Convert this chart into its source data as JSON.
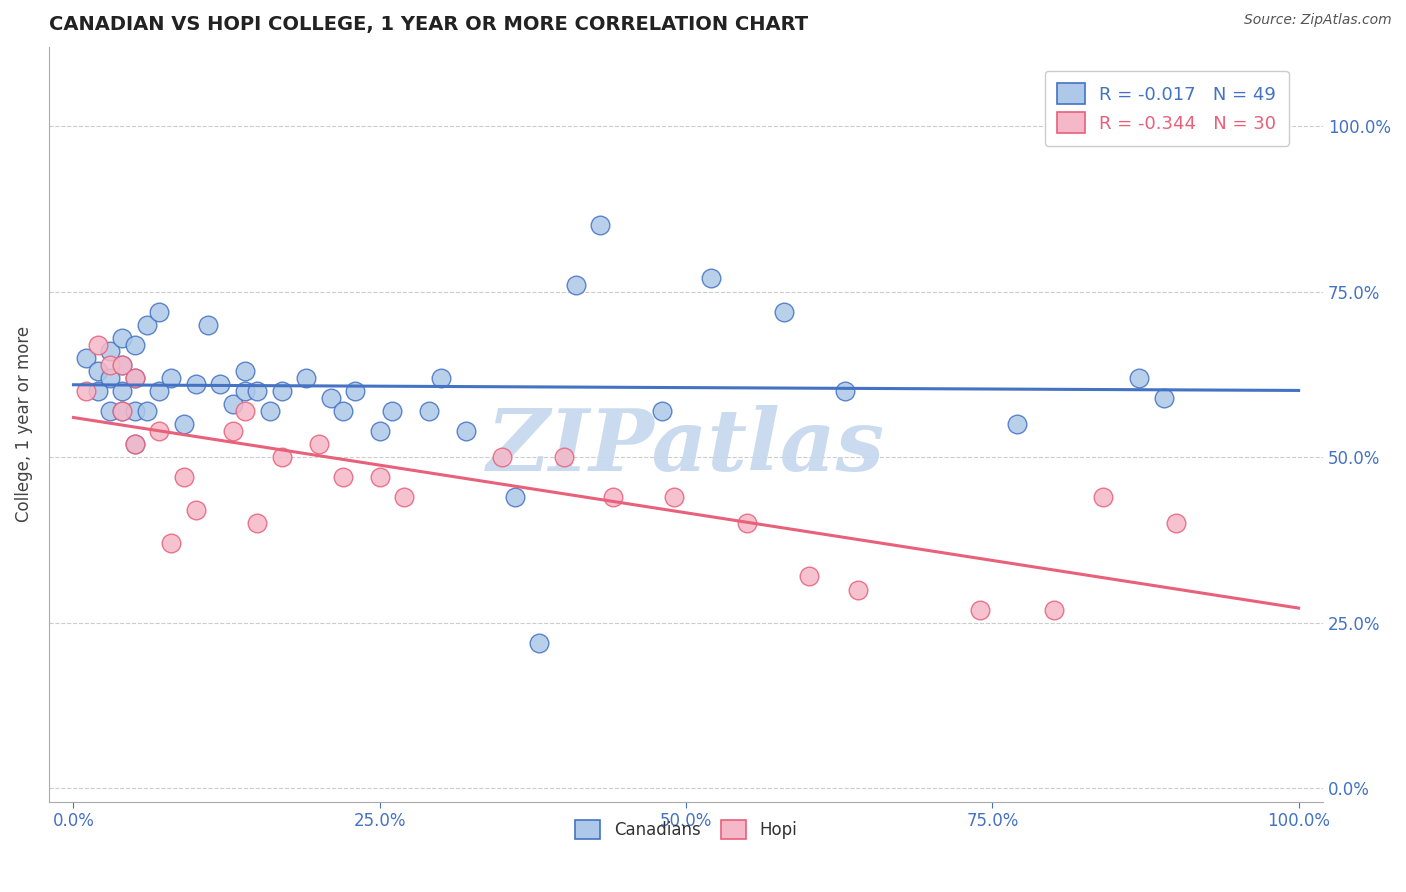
{
  "title": "CANADIAN VS HOPI COLLEGE, 1 YEAR OR MORE CORRELATION CHART",
  "source": "Source: ZipAtlas.com",
  "ylabel": "College, 1 year or more",
  "legend_labels": [
    "Canadians",
    "Hopi"
  ],
  "blue_R": -0.017,
  "blue_N": 49,
  "pink_R": -0.344,
  "pink_N": 30,
  "blue_color": "#adc8e8",
  "pink_color": "#f5b8c8",
  "blue_line_color": "#4472c4",
  "pink_line_color": "#e8607a",
  "tick_color": "#4472c4",
  "xlim": [
    -0.02,
    1.02
  ],
  "ylim": [
    -0.02,
    1.12
  ],
  "ytick_vals": [
    0.0,
    0.25,
    0.5,
    0.75,
    1.0
  ],
  "xtick_vals": [
    0.0,
    0.25,
    0.5,
    0.75,
    1.0
  ],
  "blue_x": [
    0.01,
    0.02,
    0.02,
    0.03,
    0.03,
    0.03,
    0.04,
    0.04,
    0.04,
    0.04,
    0.05,
    0.05,
    0.05,
    0.05,
    0.06,
    0.06,
    0.07,
    0.07,
    0.08,
    0.09,
    0.1,
    0.11,
    0.12,
    0.13,
    0.14,
    0.14,
    0.15,
    0.16,
    0.17,
    0.19,
    0.21,
    0.22,
    0.23,
    0.25,
    0.26,
    0.29,
    0.3,
    0.32,
    0.36,
    0.38,
    0.41,
    0.43,
    0.48,
    0.52,
    0.58,
    0.63,
    0.77,
    0.87,
    0.89
  ],
  "blue_y": [
    0.65,
    0.6,
    0.63,
    0.57,
    0.62,
    0.66,
    0.57,
    0.6,
    0.64,
    0.68,
    0.52,
    0.57,
    0.62,
    0.67,
    0.57,
    0.7,
    0.6,
    0.72,
    0.62,
    0.55,
    0.61,
    0.7,
    0.61,
    0.58,
    0.63,
    0.6,
    0.6,
    0.57,
    0.6,
    0.62,
    0.59,
    0.57,
    0.6,
    0.54,
    0.57,
    0.57,
    0.62,
    0.54,
    0.44,
    0.22,
    0.76,
    0.85,
    0.57,
    0.77,
    0.72,
    0.6,
    0.55,
    0.62,
    0.59
  ],
  "pink_x": [
    0.01,
    0.02,
    0.03,
    0.04,
    0.04,
    0.05,
    0.05,
    0.07,
    0.08,
    0.09,
    0.1,
    0.13,
    0.14,
    0.15,
    0.17,
    0.2,
    0.22,
    0.25,
    0.27,
    0.35,
    0.4,
    0.44,
    0.49,
    0.55,
    0.6,
    0.64,
    0.74,
    0.8,
    0.84,
    0.9
  ],
  "pink_y": [
    0.6,
    0.67,
    0.64,
    0.64,
    0.57,
    0.62,
    0.52,
    0.54,
    0.37,
    0.47,
    0.42,
    0.54,
    0.57,
    0.4,
    0.5,
    0.52,
    0.47,
    0.47,
    0.44,
    0.5,
    0.5,
    0.44,
    0.44,
    0.4,
    0.32,
    0.3,
    0.27,
    0.27,
    0.44,
    0.4
  ],
  "watermark": "ZIPatlas",
  "watermark_color": "#c5d8ee",
  "grid_color": "#cccccc",
  "spine_color": "#aaaaaa"
}
